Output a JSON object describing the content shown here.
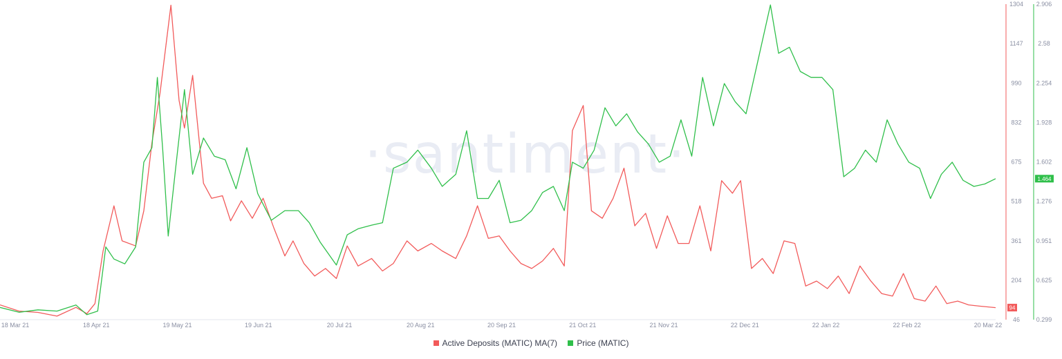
{
  "chart_data": {
    "type": "line",
    "watermark": "·santiment·",
    "x_ticks": [
      "18 Mar 21",
      "18 Apr 21",
      "19 May 21",
      "19 Jun 21",
      "20 Jul 21",
      "20 Aug 21",
      "20 Sep 21",
      "21 Oct 21",
      "21 Nov 21",
      "22 Dec 21",
      "22 Jan 22",
      "22 Feb 22",
      "20 Mar 22"
    ],
    "x_range": [
      "2021-03-18",
      "2022-03-20"
    ],
    "y_left": {
      "ticks": [
        "1304",
        "1147",
        "990",
        "832",
        "675",
        "518",
        "361",
        "204",
        "46"
      ],
      "range": [
        46,
        1304
      ],
      "color": "#f25a5a"
    },
    "y_right": {
      "ticks": [
        "2.906",
        "2.58",
        "2.254",
        "1.928",
        "1.602",
        "1.276",
        "0.951",
        "0.625",
        "0.299"
      ],
      "range": [
        0.299,
        2.906
      ],
      "color": "#2fbf4a"
    },
    "last_value_labels": {
      "deposits": "94",
      "price": "1.464"
    },
    "series": [
      {
        "name": "Active Deposits (MATIC) MA(7)",
        "color": "#f25a5a",
        "axis": "left",
        "points": [
          [
            "2021-03-18",
            105
          ],
          [
            "2021-03-25",
            80
          ],
          [
            "2021-04-01",
            75
          ],
          [
            "2021-04-08",
            60
          ],
          [
            "2021-04-15",
            95
          ],
          [
            "2021-04-19",
            70
          ],
          [
            "2021-04-22",
            110
          ],
          [
            "2021-04-25",
            320
          ],
          [
            "2021-04-29",
            500
          ],
          [
            "2021-05-02",
            360
          ],
          [
            "2021-05-07",
            340
          ],
          [
            "2021-05-10",
            480
          ],
          [
            "2021-05-13",
            750
          ],
          [
            "2021-05-16",
            950
          ],
          [
            "2021-05-20",
            1300
          ],
          [
            "2021-05-23",
            920
          ],
          [
            "2021-05-25",
            810
          ],
          [
            "2021-05-28",
            1020
          ],
          [
            "2021-06-01",
            590
          ],
          [
            "2021-06-04",
            530
          ],
          [
            "2021-06-08",
            540
          ],
          [
            "2021-06-11",
            440
          ],
          [
            "2021-06-15",
            520
          ],
          [
            "2021-06-19",
            450
          ],
          [
            "2021-06-23",
            530
          ],
          [
            "2021-06-27",
            410
          ],
          [
            "2021-07-01",
            300
          ],
          [
            "2021-07-04",
            360
          ],
          [
            "2021-07-08",
            270
          ],
          [
            "2021-07-12",
            220
          ],
          [
            "2021-07-16",
            250
          ],
          [
            "2021-07-20",
            210
          ],
          [
            "2021-07-24",
            340
          ],
          [
            "2021-07-28",
            260
          ],
          [
            "2021-08-02",
            290
          ],
          [
            "2021-08-06",
            240
          ],
          [
            "2021-08-10",
            270
          ],
          [
            "2021-08-15",
            360
          ],
          [
            "2021-08-19",
            320
          ],
          [
            "2021-08-24",
            350
          ],
          [
            "2021-08-28",
            320
          ],
          [
            "2021-09-02",
            290
          ],
          [
            "2021-09-06",
            380
          ],
          [
            "2021-09-10",
            500
          ],
          [
            "2021-09-14",
            370
          ],
          [
            "2021-09-18",
            380
          ],
          [
            "2021-09-22",
            320
          ],
          [
            "2021-09-26",
            270
          ],
          [
            "2021-09-30",
            250
          ],
          [
            "2021-10-04",
            280
          ],
          [
            "2021-10-08",
            330
          ],
          [
            "2021-10-12",
            260
          ],
          [
            "2021-10-15",
            800
          ],
          [
            "2021-10-19",
            900
          ],
          [
            "2021-10-22",
            480
          ],
          [
            "2021-10-26",
            450
          ],
          [
            "2021-10-30",
            530
          ],
          [
            "2021-11-03",
            650
          ],
          [
            "2021-11-07",
            420
          ],
          [
            "2021-11-11",
            470
          ],
          [
            "2021-11-15",
            330
          ],
          [
            "2021-11-19",
            460
          ],
          [
            "2021-11-23",
            350
          ],
          [
            "2021-11-27",
            350
          ],
          [
            "2021-12-01",
            500
          ],
          [
            "2021-12-05",
            320
          ],
          [
            "2021-12-09",
            600
          ],
          [
            "2021-12-13",
            550
          ],
          [
            "2021-12-16",
            600
          ],
          [
            "2021-12-20",
            250
          ],
          [
            "2021-12-24",
            290
          ],
          [
            "2021-12-28",
            230
          ],
          [
            "2022-01-01",
            360
          ],
          [
            "2022-01-05",
            350
          ],
          [
            "2022-01-09",
            180
          ],
          [
            "2022-01-13",
            200
          ],
          [
            "2022-01-17",
            170
          ],
          [
            "2022-01-21",
            220
          ],
          [
            "2022-01-25",
            150
          ],
          [
            "2022-01-29",
            260
          ],
          [
            "2022-02-02",
            200
          ],
          [
            "2022-02-06",
            150
          ],
          [
            "2022-02-10",
            140
          ],
          [
            "2022-02-14",
            230
          ],
          [
            "2022-02-18",
            130
          ],
          [
            "2022-02-22",
            120
          ],
          [
            "2022-02-26",
            180
          ],
          [
            "2022-03-02",
            110
          ],
          [
            "2022-03-06",
            120
          ],
          [
            "2022-03-10",
            105
          ],
          [
            "2022-03-14",
            100
          ],
          [
            "2022-03-20",
            94
          ]
        ]
      },
      {
        "name": "Price (MATIC)",
        "color": "#2fbf4a",
        "axis": "right",
        "points": [
          [
            "2021-03-18",
            0.4
          ],
          [
            "2021-03-25",
            0.36
          ],
          [
            "2021-04-01",
            0.38
          ],
          [
            "2021-04-08",
            0.37
          ],
          [
            "2021-04-15",
            0.42
          ],
          [
            "2021-04-19",
            0.34
          ],
          [
            "2021-04-23",
            0.37
          ],
          [
            "2021-04-26",
            0.9
          ],
          [
            "2021-04-29",
            0.8
          ],
          [
            "2021-05-03",
            0.76
          ],
          [
            "2021-05-07",
            0.9
          ],
          [
            "2021-05-10",
            1.6
          ],
          [
            "2021-05-13",
            1.72
          ],
          [
            "2021-05-15",
            2.3
          ],
          [
            "2021-05-17",
            1.7
          ],
          [
            "2021-05-19",
            0.99
          ],
          [
            "2021-05-22",
            1.6
          ],
          [
            "2021-05-25",
            2.2
          ],
          [
            "2021-05-28",
            1.5
          ],
          [
            "2021-06-01",
            1.8
          ],
          [
            "2021-06-05",
            1.65
          ],
          [
            "2021-06-09",
            1.62
          ],
          [
            "2021-06-13",
            1.38
          ],
          [
            "2021-06-17",
            1.72
          ],
          [
            "2021-06-21",
            1.34
          ],
          [
            "2021-06-26",
            1.12
          ],
          [
            "2021-07-01",
            1.2
          ],
          [
            "2021-07-06",
            1.2
          ],
          [
            "2021-07-10",
            1.1
          ],
          [
            "2021-07-14",
            0.94
          ],
          [
            "2021-07-20",
            0.75
          ],
          [
            "2021-07-24",
            1.0
          ],
          [
            "2021-07-28",
            1.05
          ],
          [
            "2021-08-02",
            1.08
          ],
          [
            "2021-08-06",
            1.1
          ],
          [
            "2021-08-10",
            1.55
          ],
          [
            "2021-08-15",
            1.6
          ],
          [
            "2021-08-19",
            1.7
          ],
          [
            "2021-08-24",
            1.55
          ],
          [
            "2021-08-28",
            1.4
          ],
          [
            "2021-09-02",
            1.5
          ],
          [
            "2021-09-06",
            1.86
          ],
          [
            "2021-09-10",
            1.3
          ],
          [
            "2021-09-14",
            1.3
          ],
          [
            "2021-09-18",
            1.45
          ],
          [
            "2021-09-22",
            1.1
          ],
          [
            "2021-09-26",
            1.12
          ],
          [
            "2021-09-30",
            1.2
          ],
          [
            "2021-10-04",
            1.35
          ],
          [
            "2021-10-08",
            1.4
          ],
          [
            "2021-10-12",
            1.2
          ],
          [
            "2021-10-15",
            1.6
          ],
          [
            "2021-10-19",
            1.55
          ],
          [
            "2021-10-23",
            1.7
          ],
          [
            "2021-10-27",
            2.05
          ],
          [
            "2021-10-31",
            1.9
          ],
          [
            "2021-11-04",
            2.0
          ],
          [
            "2021-11-08",
            1.85
          ],
          [
            "2021-11-12",
            1.75
          ],
          [
            "2021-11-16",
            1.6
          ],
          [
            "2021-11-20",
            1.65
          ],
          [
            "2021-11-24",
            1.95
          ],
          [
            "2021-11-28",
            1.65
          ],
          [
            "2021-12-02",
            2.3
          ],
          [
            "2021-12-06",
            1.9
          ],
          [
            "2021-12-10",
            2.25
          ],
          [
            "2021-12-14",
            2.1
          ],
          [
            "2021-12-18",
            2.0
          ],
          [
            "2021-12-22",
            2.4
          ],
          [
            "2021-12-27",
            2.9
          ],
          [
            "2021-12-30",
            2.5
          ],
          [
            "2022-01-03",
            2.55
          ],
          [
            "2022-01-07",
            2.35
          ],
          [
            "2022-01-11",
            2.3
          ],
          [
            "2022-01-15",
            2.3
          ],
          [
            "2022-01-19",
            2.2
          ],
          [
            "2022-01-23",
            1.48
          ],
          [
            "2022-01-27",
            1.55
          ],
          [
            "2022-01-31",
            1.7
          ],
          [
            "2022-02-04",
            1.6
          ],
          [
            "2022-02-08",
            1.95
          ],
          [
            "2022-02-12",
            1.75
          ],
          [
            "2022-02-16",
            1.6
          ],
          [
            "2022-02-20",
            1.55
          ],
          [
            "2022-02-24",
            1.3
          ],
          [
            "2022-02-28",
            1.5
          ],
          [
            "2022-03-04",
            1.6
          ],
          [
            "2022-03-08",
            1.45
          ],
          [
            "2022-03-12",
            1.4
          ],
          [
            "2022-03-16",
            1.42
          ],
          [
            "2022-03-20",
            1.464
          ]
        ]
      }
    ]
  }
}
